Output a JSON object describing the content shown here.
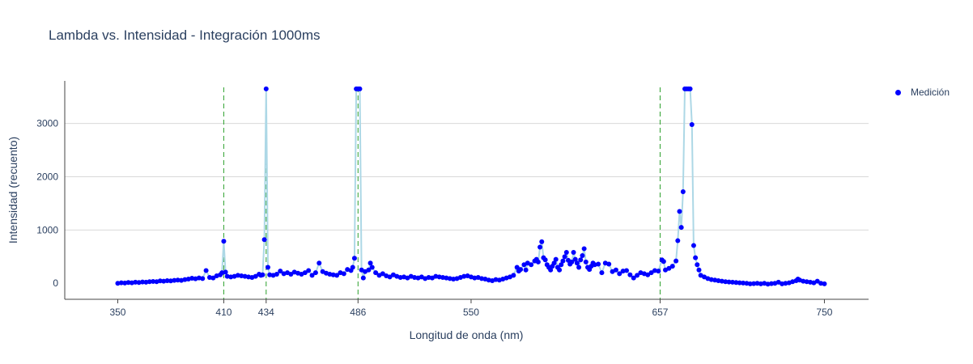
{
  "chart_data": {
    "type": "scatter",
    "title": "Lambda vs. Intensidad - Integración 1000ms",
    "xlabel": "Longitud de onda (nm)",
    "ylabel": "Intensidad (recuento)",
    "xlim": [
      320,
      775
    ],
    "ylim": [
      -300,
      3800
    ],
    "xticks": [
      350,
      410,
      434,
      486,
      550,
      657,
      750
    ],
    "yticks": [
      0,
      1000,
      2000,
      3000
    ],
    "grid": "horizontal",
    "legend_position": "top-right",
    "reference_lines_x": [
      410,
      434,
      486,
      657
    ],
    "reference_line_color": "#2ca02c",
    "series": [
      {
        "name": "Medición",
        "color": "#0000ff",
        "line_color": "#add8e6",
        "points": [
          [
            350,
            0
          ],
          [
            352,
            10
          ],
          [
            354,
            5
          ],
          [
            356,
            15
          ],
          [
            358,
            10
          ],
          [
            360,
            20
          ],
          [
            362,
            15
          ],
          [
            364,
            25
          ],
          [
            366,
            20
          ],
          [
            368,
            30
          ],
          [
            370,
            35
          ],
          [
            372,
            30
          ],
          [
            374,
            45
          ],
          [
            376,
            40
          ],
          [
            378,
            50
          ],
          [
            380,
            45
          ],
          [
            382,
            55
          ],
          [
            384,
            60
          ],
          [
            386,
            55
          ],
          [
            388,
            70
          ],
          [
            390,
            80
          ],
          [
            392,
            95
          ],
          [
            394,
            85
          ],
          [
            396,
            100
          ],
          [
            398,
            90
          ],
          [
            400,
            240
          ],
          [
            402,
            110
          ],
          [
            404,
            100
          ],
          [
            406,
            140
          ],
          [
            408,
            160
          ],
          [
            409,
            200
          ],
          [
            410,
            790
          ],
          [
            411,
            210
          ],
          [
            412,
            130
          ],
          [
            414,
            120
          ],
          [
            416,
            130
          ],
          [
            418,
            150
          ],
          [
            420,
            140
          ],
          [
            422,
            130
          ],
          [
            424,
            120
          ],
          [
            426,
            110
          ],
          [
            428,
            130
          ],
          [
            430,
            170
          ],
          [
            431,
            150
          ],
          [
            432,
            160
          ],
          [
            433,
            820
          ],
          [
            434,
            3650
          ],
          [
            435,
            300
          ],
          [
            436,
            160
          ],
          [
            438,
            150
          ],
          [
            440,
            170
          ],
          [
            442,
            230
          ],
          [
            444,
            180
          ],
          [
            446,
            200
          ],
          [
            448,
            170
          ],
          [
            450,
            210
          ],
          [
            452,
            190
          ],
          [
            454,
            170
          ],
          [
            456,
            200
          ],
          [
            458,
            240
          ],
          [
            460,
            150
          ],
          [
            462,
            200
          ],
          [
            464,
            380
          ],
          [
            466,
            220
          ],
          [
            468,
            190
          ],
          [
            470,
            170
          ],
          [
            472,
            160
          ],
          [
            474,
            150
          ],
          [
            476,
            200
          ],
          [
            478,
            180
          ],
          [
            480,
            260
          ],
          [
            482,
            240
          ],
          [
            483,
            300
          ],
          [
            484,
            470
          ],
          [
            485,
            3650
          ],
          [
            486,
            3650
          ],
          [
            487,
            3650
          ],
          [
            488,
            250
          ],
          [
            489,
            100
          ],
          [
            490,
            220
          ],
          [
            492,
            250
          ],
          [
            493,
            380
          ],
          [
            494,
            300
          ],
          [
            496,
            200
          ],
          [
            498,
            150
          ],
          [
            500,
            180
          ],
          [
            502,
            140
          ],
          [
            504,
            120
          ],
          [
            506,
            160
          ],
          [
            508,
            130
          ],
          [
            510,
            110
          ],
          [
            512,
            120
          ],
          [
            514,
            100
          ],
          [
            516,
            130
          ],
          [
            518,
            110
          ],
          [
            520,
            100
          ],
          [
            522,
            120
          ],
          [
            524,
            90
          ],
          [
            526,
            110
          ],
          [
            528,
            100
          ],
          [
            530,
            130
          ],
          [
            532,
            120
          ],
          [
            534,
            110
          ],
          [
            536,
            100
          ],
          [
            538,
            90
          ],
          [
            540,
            80
          ],
          [
            542,
            90
          ],
          [
            544,
            110
          ],
          [
            546,
            130
          ],
          [
            548,
            140
          ],
          [
            550,
            120
          ],
          [
            552,
            100
          ],
          [
            554,
            110
          ],
          [
            556,
            90
          ],
          [
            558,
            80
          ],
          [
            560,
            60
          ],
          [
            562,
            50
          ],
          [
            564,
            70
          ],
          [
            566,
            60
          ],
          [
            568,
            80
          ],
          [
            570,
            100
          ],
          [
            572,
            120
          ],
          [
            574,
            150
          ],
          [
            576,
            300
          ],
          [
            577,
            230
          ],
          [
            578,
            260
          ],
          [
            580,
            350
          ],
          [
            581,
            250
          ],
          [
            582,
            380
          ],
          [
            584,
            350
          ],
          [
            586,
            420
          ],
          [
            587,
            450
          ],
          [
            588,
            400
          ],
          [
            589,
            680
          ],
          [
            590,
            780
          ],
          [
            591,
            480
          ],
          [
            592,
            440
          ],
          [
            593,
            350
          ],
          [
            594,
            300
          ],
          [
            595,
            250
          ],
          [
            596,
            320
          ],
          [
            597,
            380
          ],
          [
            598,
            450
          ],
          [
            599,
            300
          ],
          [
            600,
            250
          ],
          [
            601,
            350
          ],
          [
            602,
            420
          ],
          [
            603,
            500
          ],
          [
            604,
            580
          ],
          [
            605,
            430
          ],
          [
            606,
            360
          ],
          [
            607,
            400
          ],
          [
            608,
            580
          ],
          [
            609,
            450
          ],
          [
            610,
            380
          ],
          [
            611,
            300
          ],
          [
            612,
            440
          ],
          [
            613,
            520
          ],
          [
            614,
            650
          ],
          [
            615,
            400
          ],
          [
            616,
            300
          ],
          [
            617,
            260
          ],
          [
            618,
            320
          ],
          [
            619,
            380
          ],
          [
            620,
            350
          ],
          [
            622,
            360
          ],
          [
            624,
            200
          ],
          [
            626,
            380
          ],
          [
            628,
            360
          ],
          [
            630,
            220
          ],
          [
            632,
            250
          ],
          [
            634,
            180
          ],
          [
            636,
            230
          ],
          [
            638,
            240
          ],
          [
            640,
            160
          ],
          [
            642,
            100
          ],
          [
            644,
            150
          ],
          [
            646,
            200
          ],
          [
            648,
            180
          ],
          [
            650,
            160
          ],
          [
            652,
            200
          ],
          [
            654,
            240
          ],
          [
            656,
            230
          ],
          [
            658,
            440
          ],
          [
            659,
            410
          ],
          [
            660,
            250
          ],
          [
            662,
            280
          ],
          [
            664,
            320
          ],
          [
            666,
            420
          ],
          [
            667,
            800
          ],
          [
            668,
            1350
          ],
          [
            669,
            1050
          ],
          [
            670,
            1720
          ],
          [
            671,
            3650
          ],
          [
            672,
            3650
          ],
          [
            673,
            3650
          ],
          [
            674,
            3650
          ],
          [
            675,
            2980
          ],
          [
            676,
            710
          ],
          [
            677,
            480
          ],
          [
            678,
            350
          ],
          [
            679,
            250
          ],
          [
            680,
            150
          ],
          [
            682,
            120
          ],
          [
            684,
            90
          ],
          [
            686,
            70
          ],
          [
            688,
            60
          ],
          [
            690,
            50
          ],
          [
            692,
            40
          ],
          [
            694,
            30
          ],
          [
            696,
            25
          ],
          [
            698,
            20
          ],
          [
            700,
            15
          ],
          [
            702,
            10
          ],
          [
            704,
            5
          ],
          [
            706,
            0
          ],
          [
            708,
            -10
          ],
          [
            710,
            -5
          ],
          [
            712,
            0
          ],
          [
            714,
            -10
          ],
          [
            716,
            0
          ],
          [
            718,
            -15
          ],
          [
            720,
            -5
          ],
          [
            722,
            0
          ],
          [
            724,
            20
          ],
          [
            726,
            -10
          ],
          [
            728,
            0
          ],
          [
            730,
            10
          ],
          [
            732,
            30
          ],
          [
            734,
            50
          ],
          [
            735,
            80
          ],
          [
            736,
            60
          ],
          [
            738,
            40
          ],
          [
            740,
            30
          ],
          [
            742,
            20
          ],
          [
            744,
            10
          ],
          [
            746,
            40
          ],
          [
            748,
            0
          ],
          [
            750,
            -10
          ]
        ]
      }
    ]
  }
}
